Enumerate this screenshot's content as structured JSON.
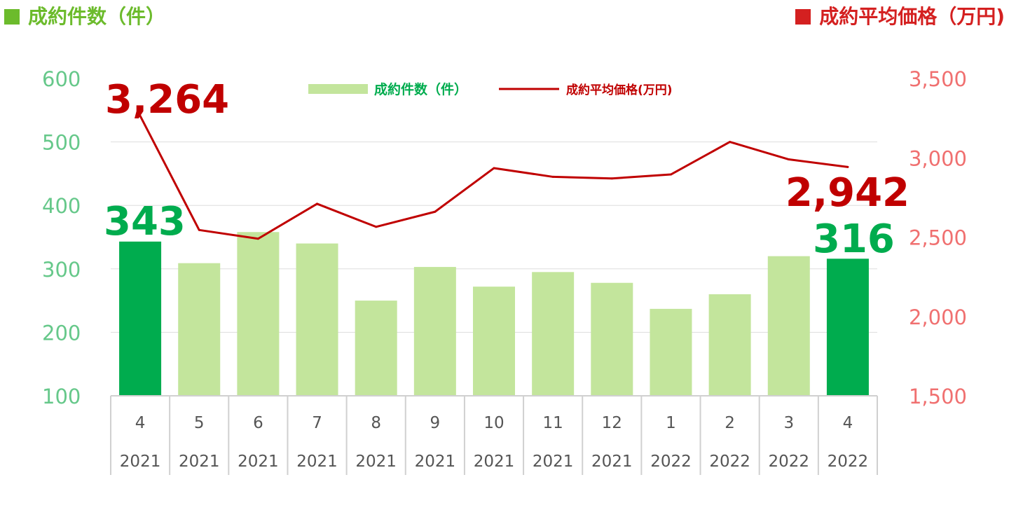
{
  "header": {
    "left_title": "成約件数（件）",
    "right_title": "成約平均価格（万円)"
  },
  "chart_data": {
    "type": "bar",
    "categories": [
      {
        "month": "4",
        "year": "2021"
      },
      {
        "month": "5",
        "year": "2021"
      },
      {
        "month": "6",
        "year": "2021"
      },
      {
        "month": "7",
        "year": "2021"
      },
      {
        "month": "8",
        "year": "2021"
      },
      {
        "month": "9",
        "year": "2021"
      },
      {
        "month": "10",
        "year": "2021"
      },
      {
        "month": "11",
        "year": "2021"
      },
      {
        "month": "12",
        "year": "2021"
      },
      {
        "month": "1",
        "year": "2022"
      },
      {
        "month": "2",
        "year": "2022"
      },
      {
        "month": "3",
        "year": "2022"
      },
      {
        "month": "4",
        "year": "2022"
      }
    ],
    "series": [
      {
        "name": "成約件数（件）",
        "type": "bar",
        "axis": "left",
        "values": [
          343,
          309,
          358,
          340,
          250,
          303,
          272,
          295,
          278,
          237,
          260,
          320,
          316
        ],
        "highlight": [
          true,
          false,
          false,
          false,
          false,
          false,
          false,
          false,
          false,
          false,
          false,
          false,
          true
        ]
      },
      {
        "name": "成約平均価格(万円)",
        "type": "line",
        "axis": "right",
        "values": [
          3264,
          2545,
          2490,
          2710,
          2565,
          2660,
          2935,
          2880,
          2870,
          2895,
          3100,
          2990,
          2942
        ]
      }
    ],
    "left_axis": {
      "ylim": [
        100,
        600
      ],
      "ticks": [
        "100",
        "200",
        "300",
        "400",
        "500",
        "600"
      ]
    },
    "right_axis": {
      "ylim": [
        1500,
        3500
      ],
      "ticks": [
        "1,500",
        "2,000",
        "2,500",
        "3,000",
        "3,500"
      ]
    },
    "annotations": {
      "first_price": "3,264",
      "last_price": "2,942",
      "first_count": "343",
      "last_count": "316"
    },
    "legend": {
      "placement": "top-center"
    },
    "grid": true
  },
  "colors": {
    "bar": "#c3e59c",
    "bar_highlight": "#00ac4e",
    "line": "#c00000",
    "left_axis_text": "#66c88a",
    "right_axis_text": "#f07070"
  }
}
